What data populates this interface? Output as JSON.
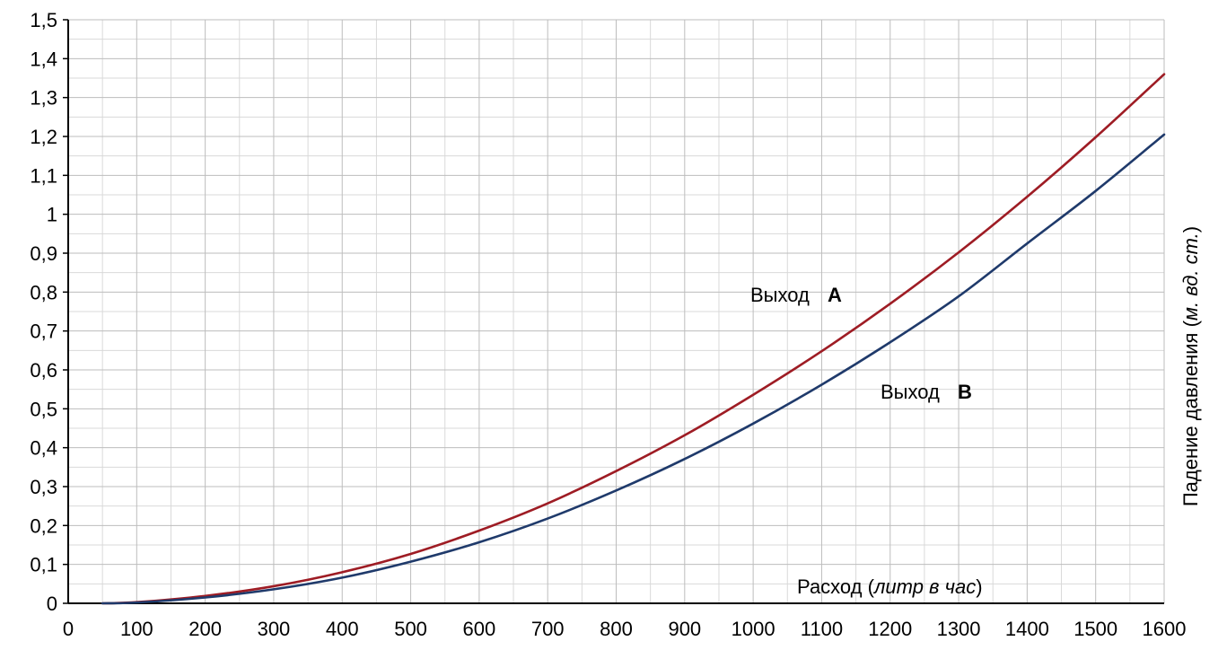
{
  "chart_data": {
    "type": "line",
    "title": "",
    "xlabel": {
      "prefix": "Расход (",
      "italic": "литр в час",
      "suffix": ")"
    },
    "ylabel": {
      "prefix": "Падение давления (",
      "italic": "м. вд. ст.",
      "suffix": ")"
    },
    "xlim": [
      0,
      1600
    ],
    "ylim": [
      0,
      1.5
    ],
    "grid": true,
    "x_ticks": [
      "0",
      "100",
      "200",
      "300",
      "400",
      "500",
      "600",
      "700",
      "800",
      "900",
      "1000",
      "1100",
      "1200",
      "1300",
      "1400",
      "1500",
      "1600"
    ],
    "y_ticks": [
      "0",
      "0,1",
      "0,2",
      "0,3",
      "0,4",
      "0,5",
      "0,6",
      "0,7",
      "0,8",
      "0,9",
      "1",
      "1,1",
      "1,2",
      "1,3",
      "1,4",
      "1,5"
    ],
    "x": [
      50,
      100,
      200,
      300,
      400,
      500,
      600,
      700,
      800,
      900,
      1000,
      1100,
      1200,
      1300,
      1400,
      1500,
      1600
    ],
    "series": [
      {
        "name": "Выход А",
        "label_main": "Выход",
        "label_bold": "А",
        "color": "#9e1c24",
        "values": [
          0.0,
          0.003,
          0.019,
          0.044,
          0.08,
          0.127,
          0.187,
          0.257,
          0.34,
          0.432,
          0.536,
          0.648,
          0.77,
          0.902,
          1.045,
          1.198,
          1.36
        ]
      },
      {
        "name": "Выход В",
        "label_main": "Выход",
        "label_bold": "В",
        "color": "#1f3a6b",
        "values": [
          0.0,
          0.002,
          0.015,
          0.036,
          0.066,
          0.107,
          0.157,
          0.218,
          0.29,
          0.371,
          0.462,
          0.562,
          0.671,
          0.789,
          0.925,
          1.06,
          1.205
        ]
      }
    ]
  }
}
